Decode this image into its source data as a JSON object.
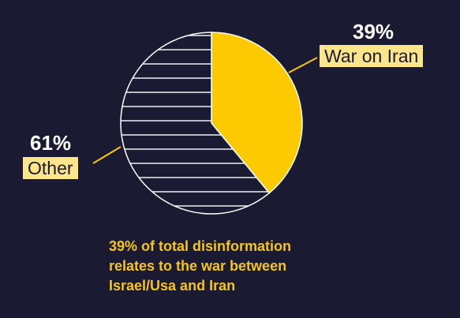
{
  "chart_data": {
    "type": "pie",
    "slices": [
      {
        "label": "War on Iran",
        "value": 39,
        "value_label": "39%",
        "color": "#fdc900",
        "fill": "solid"
      },
      {
        "label": "Other",
        "value": 61,
        "value_label": "61%",
        "color": "#ffffff",
        "fill": "horizontal-hatch"
      }
    ],
    "caption_lines": [
      "39% of total disinformation",
      "relates to the war between",
      "Israel/Usa and Iran"
    ],
    "legend": "none",
    "grid": false
  },
  "colors": {
    "background": "#1a1a33",
    "highlight": "#fdc900",
    "label_box": "#fde58a",
    "caption_text": "#f5c518"
  }
}
